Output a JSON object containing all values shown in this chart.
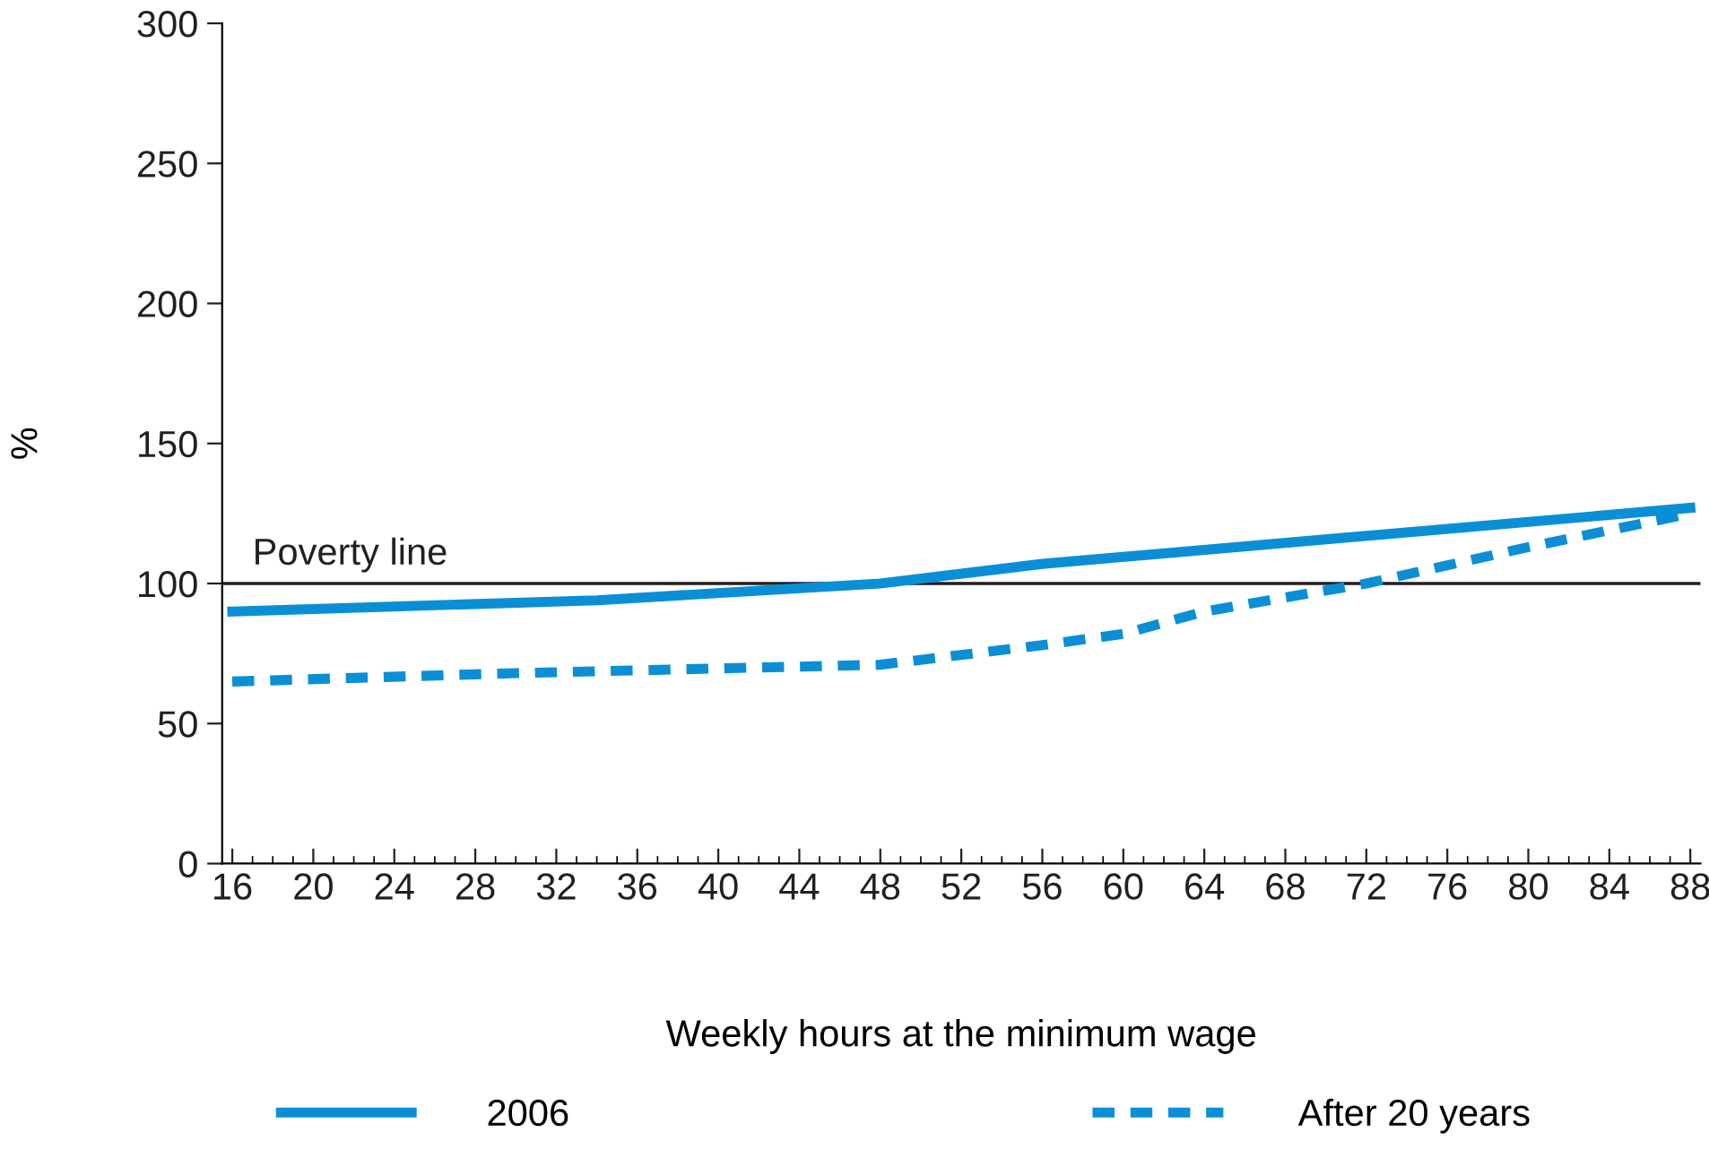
{
  "chart_data": {
    "type": "line",
    "xlabel": "Weekly hours at the minimum wage",
    "ylabel": "%",
    "series": [
      {
        "name": "2006",
        "color": "#0a8fd6",
        "line_style": "solid",
        "x": [
          16,
          34,
          48,
          56,
          88
        ],
        "values": [
          90,
          94,
          100,
          107,
          127
        ]
      },
      {
        "name": "After 20 years",
        "color": "#0a8fd6",
        "line_style": "dashed",
        "x": [
          16,
          30,
          48,
          56,
          60,
          64,
          72,
          80,
          88
        ],
        "values": [
          65,
          68,
          71,
          78,
          82,
          90,
          100,
          113,
          125
        ]
      }
    ],
    "xlim": [
      15.5,
      88.5
    ],
    "xticks": [
      16,
      20,
      24,
      28,
      32,
      36,
      40,
      44,
      48,
      52,
      56,
      60,
      64,
      68,
      72,
      76,
      80,
      84,
      88
    ],
    "ylim": [
      0,
      300
    ],
    "yticks": [
      0,
      50,
      100,
      150,
      200,
      250,
      300
    ],
    "ref_lines": [
      {
        "axis": "y",
        "value": 100,
        "label": "Poverty line",
        "color": "#231f20"
      }
    ],
    "grid": false,
    "legend": "bottom",
    "marker": "none"
  }
}
